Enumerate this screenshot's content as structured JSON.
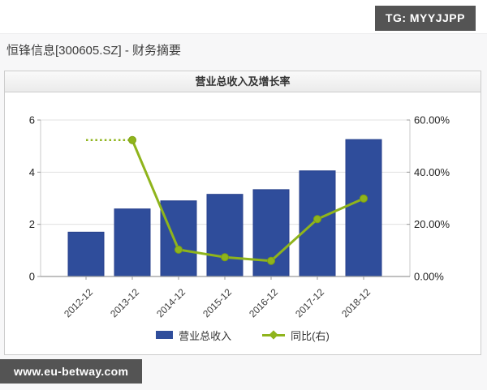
{
  "badges": {
    "tg": "TG: MYYJJPP",
    "site": "www.eu-betway.com"
  },
  "page": {
    "title": "恒锋信息[300605.SZ] - 财务摘要"
  },
  "panel": {
    "title": "营业总收入及增长率"
  },
  "chart_data": {
    "type": "bar",
    "subtype": "bar-line-dual-axis",
    "title": "营业总收入及增长率",
    "categories": [
      "2012-12",
      "2013-12",
      "2014-12",
      "2015-12",
      "2016-12",
      "2017-12",
      "2018-12"
    ],
    "series": [
      {
        "name": "营业总收入",
        "type": "bar",
        "axis": "left",
        "values": [
          1.7,
          2.59,
          2.9,
          3.15,
          3.33,
          4.05,
          5.25
        ],
        "color": "#2f4d9b",
        "border_color": "#28418c"
      },
      {
        "name": "同比(右)",
        "type": "line",
        "axis": "right",
        "values": [
          52.3,
          52.3,
          10.3,
          7.4,
          6.0,
          22.0,
          29.9
        ],
        "color": "#8fb41c",
        "marker_border": "#7da10f",
        "first_segment_style": "dotted",
        "markers_on_points": [
          1,
          2,
          3,
          4,
          5,
          6
        ]
      }
    ],
    "left_axis": {
      "range": [
        0,
        6
      ],
      "ticks": [
        "0",
        "2",
        "4",
        "6"
      ]
    },
    "right_axis": {
      "range": [
        0,
        60
      ],
      "ticks": [
        "0.00%",
        "20.00%",
        "40.00%",
        "60.00%"
      ]
    },
    "legend": [
      {
        "label": "营业总收入",
        "marker": "square"
      },
      {
        "label": "同比(右)",
        "marker": "line-diamond"
      }
    ],
    "grid": true,
    "legend_position": "bottom"
  },
  "colors": {
    "bar": "#2f4d9b",
    "line": "#8fb41c",
    "grid_line": "#e0e0e0",
    "axis_line": "#c9c9c9",
    "baseline": "#9a9a9a",
    "tick_text": "#222222",
    "xlabel_text": "#3a3a3a",
    "badge_bg": "#545454",
    "panel_border": "#cccccc"
  }
}
